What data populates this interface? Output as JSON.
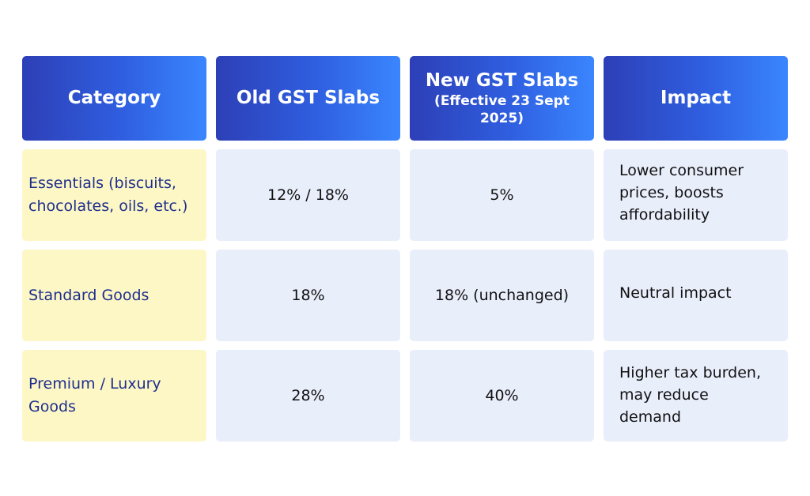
{
  "headers": {
    "category": "Category",
    "old": "Old GST Slabs",
    "new_main": "New GST Slabs",
    "new_sub": "(Effective 23 Sept 2025)",
    "impact": "Impact"
  },
  "rows": [
    {
      "category": "Essentials (biscuits, chocolates, oils, etc.)",
      "old": "12% / 18%",
      "new": "5%",
      "impact": "Lower consumer prices, boosts affordability"
    },
    {
      "category": "Standard Goods",
      "old": "18%",
      "new": "18% (unchanged)",
      "impact": "Neutral impact"
    },
    {
      "category": "Premium / Luxury Goods",
      "old": "28%",
      "new": "40%",
      "impact": "Higher tax burden, may reduce demand"
    }
  ],
  "colors": {
    "header_gradient_start": "#2d3fb7",
    "header_gradient_end": "#3a86ff",
    "category_bg": "#fdf7c6",
    "category_text": "#1e2f8c",
    "cell_bg": "#e9eefb"
  }
}
